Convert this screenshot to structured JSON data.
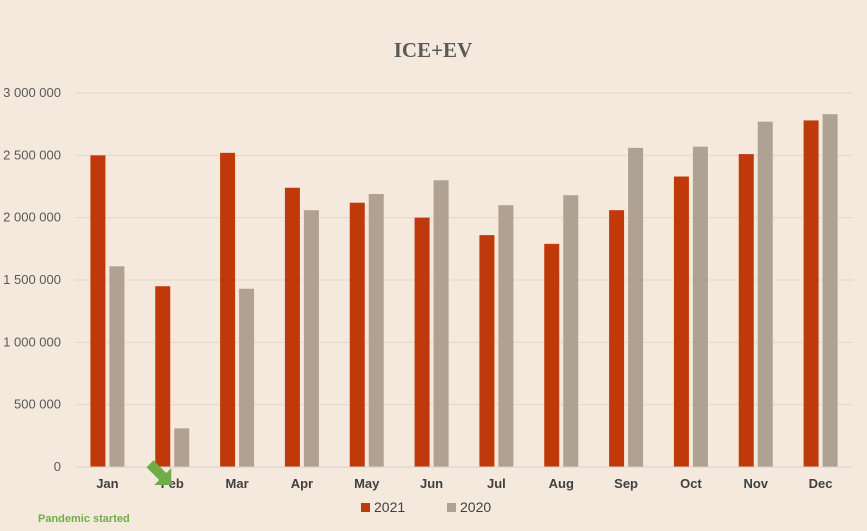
{
  "chart_data": {
    "type": "bar",
    "title": "ICE+EV",
    "categories": [
      "Jan",
      "Feb",
      "Mar",
      "Apr",
      "May",
      "Jun",
      "Jul",
      "Aug",
      "Sep",
      "Oct",
      "Nov",
      "Dec"
    ],
    "series": [
      {
        "name": "2021",
        "color": "#c0390b",
        "values": [
          2500000,
          1450000,
          2520000,
          2240000,
          2120000,
          2000000,
          1860000,
          1790000,
          2060000,
          2330000,
          2510000,
          2780000
        ]
      },
      {
        "name": "2020",
        "color": "#b0a293",
        "values": [
          1610000,
          310000,
          1430000,
          2060000,
          2190000,
          2300000,
          2100000,
          2180000,
          2560000,
          2570000,
          2770000,
          2830000
        ]
      }
    ],
    "ylim": [
      0,
      3000000
    ],
    "yticks": [
      0,
      500000,
      1000000,
      1500000,
      2000000,
      2500000,
      3000000
    ],
    "ytick_labels": [
      "0",
      "500 000",
      "1 000 000",
      "1 500 000",
      "2 000 000",
      "2 500 000",
      "3 000 000"
    ],
    "xlabel": "",
    "ylabel": "",
    "grid": true,
    "legend_position": "bottom-center",
    "annotation": {
      "text": "Pandemic started",
      "category": "Feb",
      "color": "#70ad47"
    }
  },
  "style": {
    "background": "#f5e9dd",
    "gridline_color": "#e3d8cc",
    "axis_color": "#d9d0c6"
  }
}
